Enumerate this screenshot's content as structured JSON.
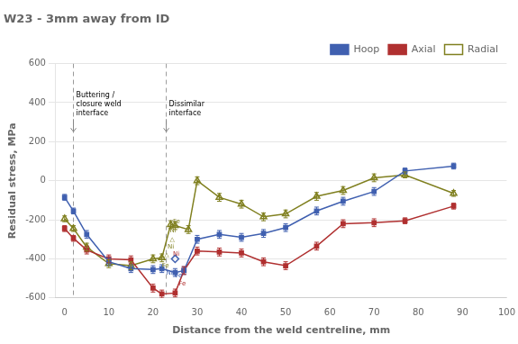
{
  "chart_data": {
    "type": "line",
    "title": "W23 - 3mm away from ID",
    "xlabel": "Distance from the weld centreline, mm",
    "ylabel": "Residual stress, MPa",
    "xlim": [
      -2,
      100
    ],
    "ylim": [
      -600,
      600
    ],
    "xticks": [
      0,
      10,
      20,
      30,
      40,
      50,
      60,
      70,
      80,
      90,
      100
    ],
    "yticks": [
      -600,
      -400,
      -200,
      0,
      200,
      400,
      600
    ],
    "grid": "y",
    "legend": "upper right",
    "series": [
      {
        "name": "Hoop",
        "color": "#4060B0",
        "marker": "square",
        "x": [
          0,
          2,
          5,
          10,
          15,
          20,
          22,
          25,
          27,
          30,
          35,
          40,
          45,
          50,
          57,
          63,
          70,
          77,
          88
        ],
        "values": [
          -85,
          -155,
          -275,
          -415,
          -450,
          -455,
          -450,
          -470,
          -460,
          -300,
          -275,
          -290,
          -270,
          -240,
          -155,
          -105,
          -55,
          50,
          75
        ],
        "errors": [
          15,
          15,
          20,
          20,
          20,
          20,
          20,
          20,
          20,
          20,
          20,
          20,
          20,
          20,
          20,
          20,
          20,
          15,
          15
        ]
      },
      {
        "name": "Axial",
        "color": "#B03030",
        "marker": "square",
        "x": [
          0,
          2,
          5,
          10,
          15,
          20,
          22,
          25,
          27,
          30,
          35,
          40,
          45,
          50,
          57,
          63,
          70,
          77,
          88
        ],
        "values": [
          -245,
          -295,
          -355,
          -400,
          -405,
          -550,
          -580,
          -575,
          -460,
          -360,
          -365,
          -370,
          -415,
          -435,
          -335,
          -220,
          -215,
          -205,
          -130
        ],
        "errors": [
          15,
          15,
          20,
          20,
          20,
          20,
          20,
          20,
          20,
          20,
          20,
          20,
          20,
          20,
          20,
          20,
          20,
          15,
          15
        ]
      },
      {
        "name": "Radial",
        "color": "#808020",
        "marker": "triangle_open",
        "x": [
          0,
          2,
          5,
          10,
          15,
          20,
          22,
          24,
          25,
          28,
          30,
          35,
          40,
          45,
          50,
          57,
          63,
          70,
          77,
          88
        ],
        "values": [
          -195,
          -245,
          -340,
          -425,
          -435,
          -400,
          -395,
          -225,
          -230,
          -250,
          0,
          -85,
          -120,
          -185,
          -170,
          -80,
          -50,
          15,
          30,
          -65
        ],
        "errors": [
          15,
          15,
          20,
          20,
          20,
          20,
          20,
          20,
          20,
          20,
          20,
          20,
          20,
          20,
          20,
          20,
          20,
          20,
          15,
          15
        ]
      }
    ],
    "markers": [
      {
        "x": 25,
        "y": -400,
        "color": "#4060B0",
        "marker": "diamond_open"
      }
    ],
    "vlines": [
      {
        "x": 2,
        "label": "Buttering /\nclosure weld\ninterface",
        "label_y": 325
      },
      {
        "x": 23,
        "label": "Dissimilar\ninterface",
        "label_y": 325
      }
    ],
    "annotations": [
      {
        "text": "Fe",
        "x": 24.5,
        "y": -210,
        "color": "#808020"
      },
      {
        "text": "Ni",
        "x": 23.8,
        "y": -255,
        "color": "#808020"
      },
      {
        "text": "△",
        "x": 23.8,
        "y": -300,
        "color": "#808020"
      },
      {
        "text": "Ni",
        "x": 23.3,
        "y": -340,
        "color": "#808020"
      },
      {
        "text": "△",
        "x": 22.5,
        "y": -380,
        "color": "#808020"
      },
      {
        "text": "Fe",
        "x": 22.0,
        "y": -435,
        "color": "#808020"
      },
      {
        "text": "Ni",
        "x": 23.0,
        "y": -455,
        "color": "#4060B0"
      },
      {
        "text": "Fe",
        "x": 25.0,
        "y": -488,
        "color": "#4060B0"
      },
      {
        "text": "Ni",
        "x": 24.5,
        "y": -345,
        "color": "#B03030"
      },
      {
        "text": "Fe",
        "x": 25.8,
        "y": -482,
        "color": "#B03030"
      }
    ]
  }
}
